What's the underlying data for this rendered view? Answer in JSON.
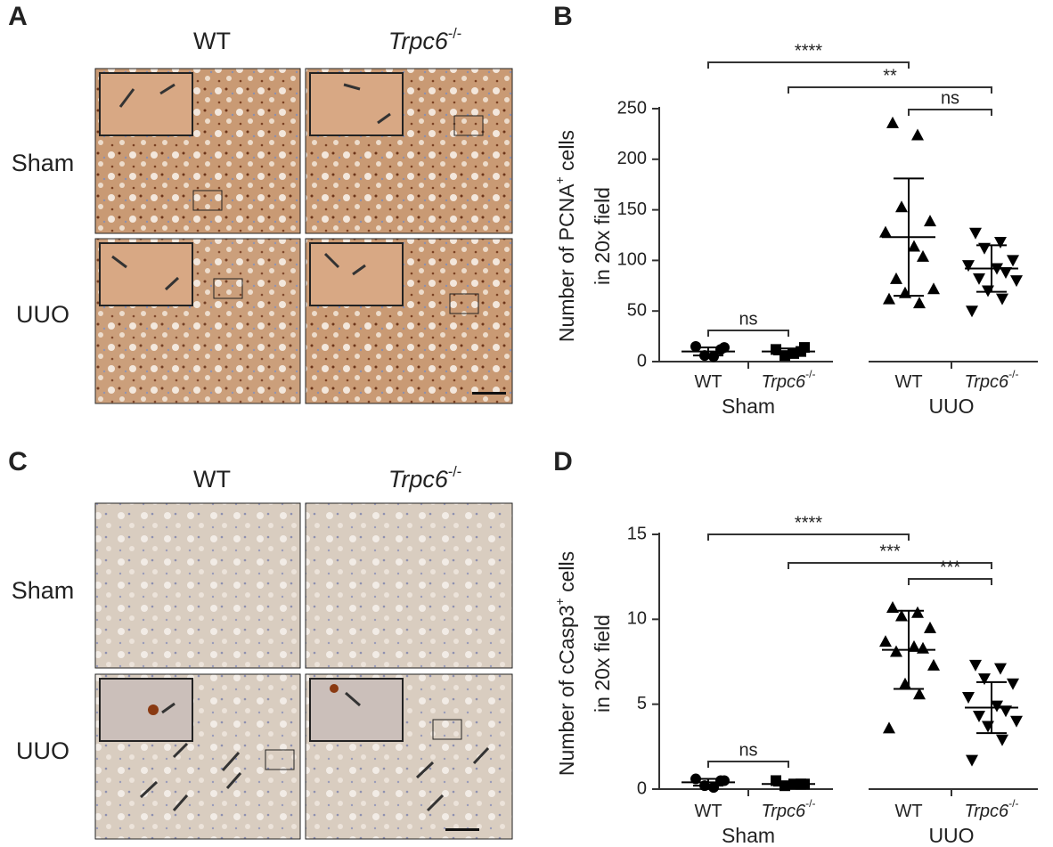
{
  "image_panels": [
    {
      "letter": "A",
      "columns": [
        {
          "text": "WT"
        },
        {
          "text": "Trpc6",
          "sup": "-/-"
        }
      ],
      "rows": [
        "Sham",
        "UUO"
      ]
    },
    {
      "letter": "C",
      "columns": [
        {
          "text": "WT"
        },
        {
          "text": "Trpc6",
          "sup": "-/-"
        }
      ],
      "rows": [
        "Sham",
        "UUO"
      ]
    }
  ],
  "chart_data": [
    {
      "type": "dot",
      "letter": "B",
      "ylabel": {
        "text": "Number of PCNA",
        "sup": "+",
        "rest": " cells"
      },
      "ylabel_line2": "in 20x field",
      "categories": [
        {
          "text": "WT"
        },
        {
          "text": "Trpc6",
          "sup": "-/-"
        },
        {
          "text": "WT"
        },
        {
          "text": "Trpc6",
          "sup": "-/-"
        }
      ],
      "groups": [
        "Sham",
        "UUO"
      ],
      "markers": [
        "circle",
        "square",
        "triangle-up",
        "triangle-down"
      ],
      "color": "#000000",
      "points": [
        [
          15,
          12,
          6,
          5,
          14
        ],
        [
          12,
          10,
          6,
          8,
          14
        ],
        [
          236,
          224,
          153,
          139,
          128,
          114,
          104,
          82,
          72,
          68,
          58,
          62
        ],
        [
          127,
          118,
          112,
          100,
          95,
          92,
          88,
          82,
          80,
          70,
          62,
          50
        ]
      ],
      "means": [
        10,
        10,
        123,
        92
      ],
      "sd": [
        4,
        3,
        58,
        23
      ],
      "ylim": [
        0,
        250
      ],
      "yticks": [
        0,
        50,
        100,
        150,
        200,
        250
      ],
      "comparison_labels": [
        "****",
        "**",
        "ns",
        "ns"
      ]
    },
    {
      "type": "dot",
      "letter": "D",
      "ylabel": {
        "text": "Number of cCasp3",
        "sup": "+",
        "rest": " cells"
      },
      "ylabel_line2": "in 20x field",
      "categories": [
        {
          "text": "WT"
        },
        {
          "text": "Trpc6",
          "sup": "-/-"
        },
        {
          "text": "WT"
        },
        {
          "text": "Trpc6",
          "sup": "-/-"
        }
      ],
      "groups": [
        "Sham",
        "UUO"
      ],
      "markers": [
        "circle",
        "square",
        "triangle-up",
        "triangle-down"
      ],
      "color": "#000000",
      "points": [
        [
          0.6,
          0.5,
          0.2,
          0.1,
          0.5
        ],
        [
          0.5,
          0.3,
          0.2,
          0.3,
          0.3
        ],
        [
          10.7,
          10.4,
          10.2,
          9.5,
          8.7,
          8.4,
          8.3,
          8.1,
          7.3,
          6.2,
          5.6,
          3.6
        ],
        [
          7.3,
          7.1,
          6.5,
          6.2,
          5.4,
          4.9,
          4.6,
          4.3,
          4.0,
          3.7,
          2.9,
          1.7
        ]
      ],
      "means": [
        0.4,
        0.3,
        8.2,
        4.8
      ],
      "sd": [
        0.2,
        0.1,
        2.3,
        1.5
      ],
      "ylim": [
        0,
        15
      ],
      "yticks": [
        0,
        5,
        10,
        15
      ],
      "comparison_labels": [
        "****",
        "***",
        "***",
        "ns"
      ]
    }
  ]
}
